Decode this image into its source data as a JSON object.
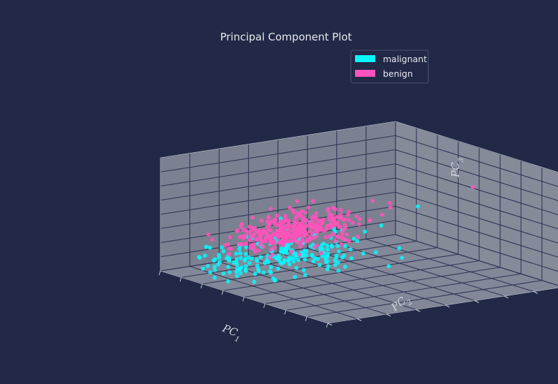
{
  "chart_data": {
    "type": "scatter",
    "projection": "3d",
    "title": "Principal Component Plot",
    "axes": {
      "x": {
        "label": "PC",
        "subscript": "1"
      },
      "y": {
        "label": "PC",
        "subscript": "2"
      },
      "z": {
        "label": "PC",
        "subscript": "3"
      }
    },
    "xlim": [
      -20,
      60
    ],
    "ylim": [
      -10,
      30
    ],
    "zlim": [
      -10,
      30
    ],
    "grid": true,
    "legend_position": "top-right",
    "series": [
      {
        "name": "malignant",
        "color": "#08F7FE",
        "n_points": 212,
        "seed": 7,
        "center": [
          8,
          0,
          -2
        ],
        "spread": [
          6,
          6,
          3
        ],
        "outliers": [
          [
            20,
            -2,
            4
          ],
          [
            25,
            3,
            8
          ],
          [
            30,
            7,
            10
          ],
          [
            35,
            8,
            13
          ],
          [
            30,
            16,
            16
          ],
          [
            38,
            10,
            5
          ],
          [
            26,
            4,
            3
          ],
          [
            15,
            -2,
            14
          ],
          [
            28,
            0,
            0
          ],
          [
            22,
            -6,
            6
          ],
          [
            32,
            4,
            2
          ],
          [
            18,
            2,
            12
          ]
        ]
      },
      {
        "name": "benign",
        "color": "#FE53BB",
        "n_points": 357,
        "seed": 3,
        "center": [
          -2,
          6,
          3
        ],
        "spread": [
          3,
          5,
          3
        ],
        "outliers": [
          [
            45,
            20,
            25
          ],
          [
            12,
            8,
            14
          ],
          [
            10,
            10,
            12
          ],
          [
            8,
            6,
            16
          ],
          [
            14,
            2,
            9
          ],
          [
            6,
            2,
            10
          ]
        ]
      }
    ]
  }
}
